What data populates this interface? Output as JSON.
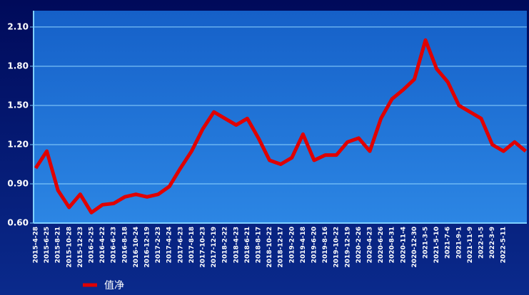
{
  "chart_data": {
    "type": "line",
    "categories": [
      "2015-4-28",
      "2015-6-25",
      "2015-8-21",
      "2015-10-28",
      "2015-12-23",
      "2016-2-25",
      "2016-4-22",
      "2016-6-23",
      "2016-8-18",
      "2016-10-24",
      "2016-12-19",
      "2017-2-23",
      "2017-4-24",
      "2017-6-23",
      "2017-8-18",
      "2017-10-23",
      "2017-12-19",
      "2018-2-22",
      "2018-4-23",
      "2018-6-21",
      "2018-8-17",
      "2018-10-22",
      "2018-12-17",
      "2019-2-20",
      "2019-4-18",
      "2019-6-20",
      "2019-8-16",
      "2019-10-22",
      "2019-12-19",
      "2020-2-26",
      "2020-4-23",
      "2020-6-26",
      "2020-8-31",
      "2020-11-4",
      "2020-12-30",
      "2021-3-5",
      "2021-5-10",
      "2021-7-6",
      "2021-9-1",
      "2021-11-9",
      "2022-1-5",
      "2022-3-9",
      "2022-5-11",
      null,
      null
    ],
    "series": [
      {
        "name": "值净",
        "color": "#e00000",
        "values": [
          1.02,
          1.15,
          0.85,
          0.72,
          0.82,
          0.68,
          0.74,
          0.75,
          0.8,
          0.82,
          0.8,
          0.82,
          0.88,
          1.02,
          1.15,
          1.32,
          1.45,
          1.4,
          1.35,
          1.4,
          1.25,
          1.08,
          1.05,
          1.1,
          1.28,
          1.08,
          1.12,
          1.12,
          1.22,
          1.25,
          1.15,
          1.4,
          1.55,
          1.62,
          1.7,
          2.0,
          1.78,
          1.68,
          1.5,
          1.45,
          1.4,
          1.2,
          1.15,
          1.22,
          1.15
        ]
      }
    ],
    "ylim": [
      0.6,
      2.225
    ],
    "yticks": [
      {
        "value": 0.6,
        "label": "0.60"
      },
      {
        "value": 0.9,
        "label": "0.90"
      },
      {
        "value": 1.2,
        "label": "1.20"
      },
      {
        "value": 1.5,
        "label": "1.50"
      },
      {
        "value": 1.8,
        "label": "1.80"
      },
      {
        "value": 2.1,
        "label": "2.10"
      }
    ],
    "grid": true
  }
}
